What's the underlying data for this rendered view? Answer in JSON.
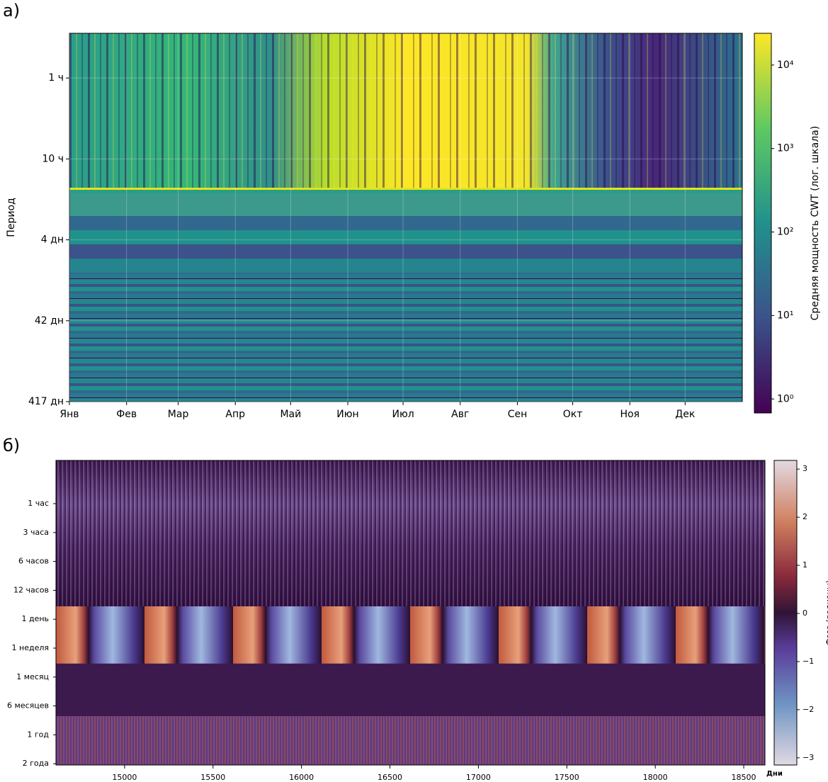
{
  "chart_data": [
    {
      "type": "heatmap",
      "panel_label": "а)",
      "ylabel": "Период",
      "ylog": true,
      "yinvert": true,
      "ylim": [
        0.28,
        10000
      ],
      "yticks": [
        {
          "value": 1,
          "label": "1 ч"
        },
        {
          "value": 10,
          "label": "10 ч"
        },
        {
          "value": 100,
          "label": "4 дн"
        },
        {
          "value": 1000,
          "label": "42 дн"
        },
        {
          "value": 10000,
          "label": "417 дн"
        }
      ],
      "xlim": [
        0,
        365
      ],
      "xticks": [
        {
          "value": 0,
          "label": "Янв"
        },
        {
          "value": 31,
          "label": "Фев"
        },
        {
          "value": 59,
          "label": "Мар"
        },
        {
          "value": 90,
          "label": "Апр"
        },
        {
          "value": 120,
          "label": "Май"
        },
        {
          "value": 151,
          "label": "Июн"
        },
        {
          "value": 181,
          "label": "Июл"
        },
        {
          "value": 212,
          "label": "Авг"
        },
        {
          "value": 243,
          "label": "Сен"
        },
        {
          "value": 273,
          "label": "Окт"
        },
        {
          "value": 304,
          "label": "Ноя"
        },
        {
          "value": 334,
          "label": "Дек"
        }
      ],
      "grid": true,
      "colorbar": {
        "label": "Средняя мощность CWT (лог. шкала)",
        "log": true,
        "lim": [
          0.68,
          24000
        ],
        "ticks": [
          {
            "value": 1,
            "label": "10⁰"
          },
          {
            "value": 10,
            "label": "10¹"
          },
          {
            "value": 100,
            "label": "10²"
          },
          {
            "value": 1000,
            "label": "10³"
          },
          {
            "value": 10000,
            "label": "10⁴"
          }
        ]
      }
    },
    {
      "type": "heatmap",
      "panel_label": "б)",
      "xlabel": "Дни",
      "xlim": [
        14612,
        18620
      ],
      "xticks": [
        15000,
        15500,
        16000,
        16500,
        17000,
        17500,
        18000,
        18500
      ],
      "ycategories": [
        "1 час",
        "3 часа",
        "6 часов",
        "12 часов",
        "1 день",
        "1 неделя",
        "1 месяц",
        "6 месяцев",
        "1 год",
        "2 года"
      ],
      "grid": false,
      "colorbar": {
        "label": "Фаза (радианы)",
        "log": false,
        "lim": [
          -3.15,
          3.18
        ],
        "ticks": [
          {
            "value": -3,
            "label": "−3"
          },
          {
            "value": -2,
            "label": "−2"
          },
          {
            "value": -1,
            "label": "−1"
          },
          0,
          1,
          2,
          3
        ]
      }
    }
  ]
}
